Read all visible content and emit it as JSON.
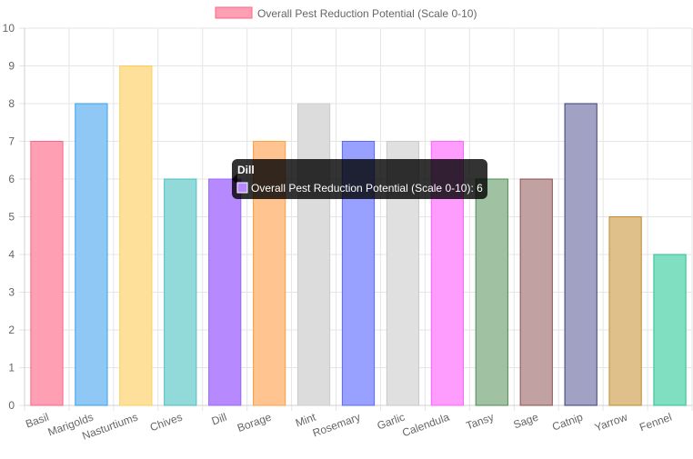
{
  "chart_data": {
    "type": "bar",
    "categories": [
      "Basil",
      "Marigolds",
      "Nasturtiums",
      "Chives",
      "Dill",
      "Borage",
      "Mint",
      "Rosemary",
      "Garlic",
      "Calendula",
      "Tansy",
      "Sage",
      "Catnip",
      "Yarrow",
      "Fennel"
    ],
    "series": [
      {
        "name": "Overall Pest Reduction Potential (Scale 0-10)",
        "values": [
          7,
          8,
          9,
          6,
          6,
          7,
          8,
          7,
          7,
          7,
          6,
          6,
          8,
          5,
          4
        ]
      }
    ],
    "ylim": [
      0,
      10
    ],
    "yticks": [
      0,
      1,
      2,
      3,
      4,
      5,
      6,
      7,
      8,
      9,
      10
    ],
    "grid": true,
    "legend": "top-center",
    "bar_colors": [
      {
        "fill": "#ff9fb4",
        "stroke": "#ff6384"
      },
      {
        "fill": "#8fc8f4",
        "stroke": "#36a2eb"
      },
      {
        "fill": "#ffe09b",
        "stroke": "#ffce56"
      },
      {
        "fill": "#92d9d9",
        "stroke": "#4bc0c0"
      },
      {
        "fill": "#b689ff",
        "stroke": "#9966ff"
      },
      {
        "fill": "#ffc490",
        "stroke": "#ff9f40"
      },
      {
        "fill": "#dcdcdc",
        "stroke": "#c9cbcf"
      },
      {
        "fill": "#98a1ff",
        "stroke": "#5a67ff"
      },
      {
        "fill": "#e0e0e0",
        "stroke": "#c9c9c9"
      },
      {
        "fill": "#ff9dff",
        "stroke": "#ff63ff"
      },
      {
        "fill": "#a0c2a2",
        "stroke": "#4b8e50"
      },
      {
        "fill": "#c1a1a1",
        "stroke": "#8e5050"
      },
      {
        "fill": "#a1a1c3",
        "stroke": "#3d3d7a"
      },
      {
        "fill": "#dfc08a",
        "stroke": "#c08a2a"
      },
      {
        "fill": "#80dfc0",
        "stroke": "#2ac090"
      }
    ],
    "legend_swatch": {
      "fill": "#ff9fb4",
      "stroke": "#ff6384"
    },
    "tooltip": {
      "title": "Dill",
      "label": "Overall Pest Reduction Potential (Scale 0-10): 6",
      "swatch": "#b689ff"
    }
  }
}
